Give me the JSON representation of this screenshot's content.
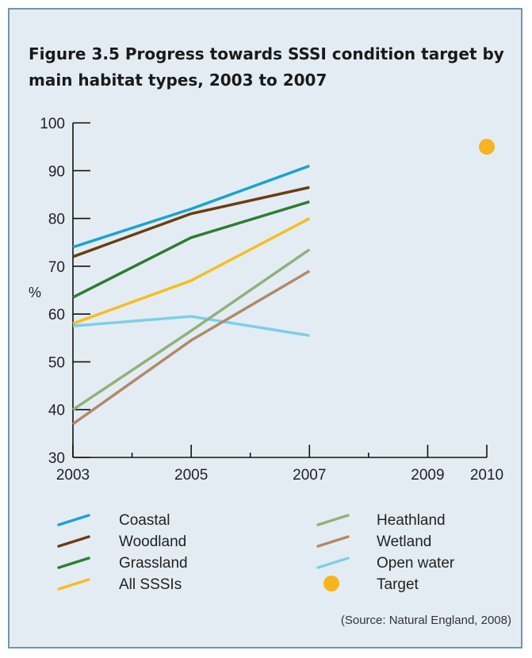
{
  "figure": {
    "title": "Figure 3.5  Progress towards SSSI condition target by main habitat types, 2003 to 2007",
    "source": "(Source: Natural England, 2008)"
  },
  "chart_data": {
    "type": "line",
    "title": "Figure 3.5  Progress towards SSSI condition target by main habitat types, 2003 to 2007",
    "xlabel": "",
    "ylabel": "%",
    "xlim": [
      2003,
      2010
    ],
    "ylim": [
      30,
      100
    ],
    "x_ticks_labeled": [
      2003,
      2005,
      2007,
      2009,
      2010
    ],
    "x_ticks_minor": [
      2004,
      2006,
      2008
    ],
    "y_ticks": [
      30,
      40,
      50,
      60,
      70,
      80,
      90,
      100
    ],
    "grid": false,
    "legend_position": "bottom",
    "x": [
      2003,
      2005,
      2007
    ],
    "series": [
      {
        "name": "Coastal",
        "color": "#1aa3cf",
        "values": [
          74,
          82,
          91
        ]
      },
      {
        "name": "Woodland",
        "color": "#6a3d12",
        "values": [
          72,
          81,
          86.5
        ]
      },
      {
        "name": "Grassland",
        "color": "#2e7d32",
        "values": [
          63.5,
          76,
          83.5
        ]
      },
      {
        "name": "All SSSIs",
        "color": "#f5be1e",
        "values": [
          58,
          67,
          80
        ]
      },
      {
        "name": "Heathland",
        "color": "#8fb27a",
        "values": [
          40,
          56.5,
          73.5
        ]
      },
      {
        "name": "Wetland",
        "color": "#b08a6a",
        "values": [
          37,
          54.5,
          69
        ]
      },
      {
        "name": "Open water",
        "color": "#7dcfe8",
        "values": [
          57.5,
          59.5,
          55.5
        ]
      }
    ],
    "target": {
      "name": "Target",
      "color": "#f7b41f",
      "x": 2010,
      "y": 95
    }
  }
}
